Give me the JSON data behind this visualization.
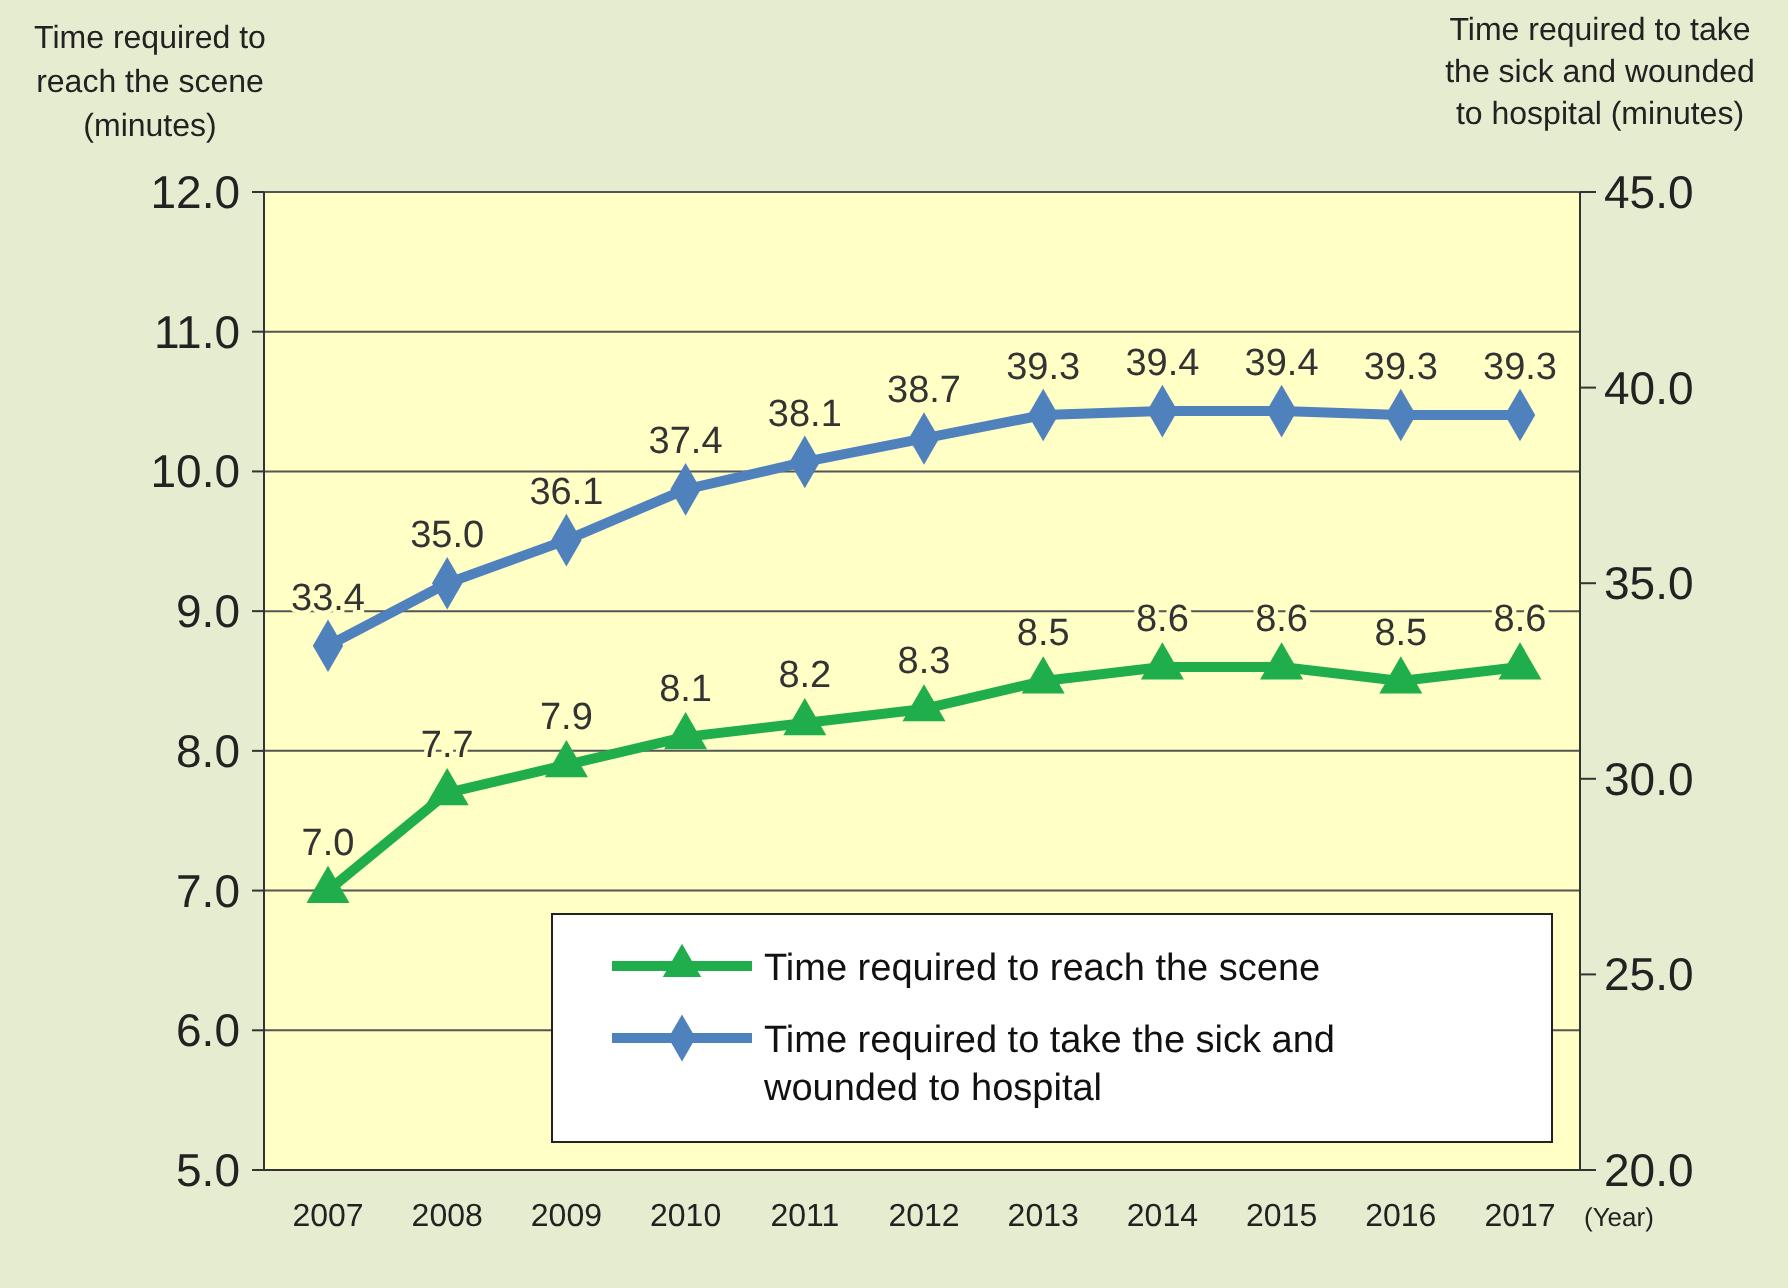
{
  "chart_data": {
    "type": "line",
    "ylabel": "Time required to reach the scene (minutes)",
    "y2label": "Time required to take the sick and wounded to hospital (minutes)",
    "xlabel": "(Year)",
    "categories": [
      "2007",
      "2008",
      "2009",
      "2010",
      "2011",
      "2012",
      "2013",
      "2014",
      "2015",
      "2016",
      "2017"
    ],
    "series": [
      {
        "name": "Time required to reach the scene",
        "color": "#1fae4b",
        "marker": "triangle",
        "values": [
          7.0,
          7.7,
          7.9,
          8.1,
          8.2,
          8.3,
          8.5,
          8.6,
          8.6,
          8.5,
          8.6
        ],
        "value_labels": [
          "7.0",
          "7.7",
          "7.9",
          "8.1",
          "8.2",
          "8.3",
          "8.5",
          "8.6",
          "8.6",
          "8.5",
          "8.6"
        ]
      },
      {
        "name": "Time required to take the sick and wounded to hospital",
        "color": "#4f81bd",
        "marker": "diamond",
        "axis": "y2",
        "values": [
          33.4,
          35.0,
          36.1,
          37.4,
          38.1,
          38.7,
          39.3,
          39.4,
          39.4,
          39.3,
          39.3
        ],
        "value_labels": [
          "33.4",
          "35.0",
          "36.1",
          "37.4",
          "38.1",
          "38.7",
          "39.3",
          "39.4",
          "39.4",
          "39.3",
          "39.3"
        ]
      }
    ],
    "ylim": [
      5,
      12
    ],
    "yticks": [
      {
        "value": 5,
        "label": "5.0"
      },
      {
        "value": 6,
        "label": "6.0"
      },
      {
        "value": 7,
        "label": "7.0"
      },
      {
        "value": 8,
        "label": "8.0"
      },
      {
        "value": 9,
        "label": "9.0"
      },
      {
        "value": 10,
        "label": "10.0"
      },
      {
        "value": 11,
        "label": "11.0"
      },
      {
        "value": 12,
        "label": "12.0"
      }
    ],
    "y2lim": [
      20,
      45
    ],
    "y2ticks": [
      {
        "value": 20,
        "label": "20.0"
      },
      {
        "value": 25,
        "label": "25.0"
      },
      {
        "value": 30,
        "label": "30.0"
      },
      {
        "value": 35,
        "label": "35.0"
      },
      {
        "value": 40,
        "label": "40.0"
      },
      {
        "value": 45,
        "label": "45.0"
      }
    ],
    "grid": "y",
    "legend": "bottom right"
  }
}
